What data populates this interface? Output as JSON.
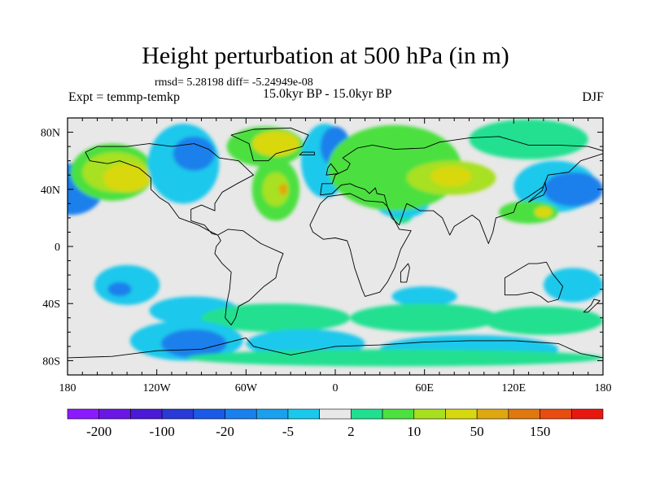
{
  "header": {
    "title": "Height perturbation at 500 hPa (in m)",
    "stats": "rmsd= 5.28198 diff= -5.24949e-08",
    "experiment": "Expt = temmp-temkp",
    "period": "15.0kyr BP - 15.0kyr BP",
    "season": "DJF"
  },
  "chart_data": {
    "type": "heatmap",
    "title": "Height perturbation at 500 hPa (in m)",
    "xlabel": "",
    "ylabel": "",
    "xlim": [
      -180,
      180
    ],
    "ylim": [
      -90,
      90
    ],
    "x_ticks": [
      {
        "value": -180,
        "label": "180"
      },
      {
        "value": -120,
        "label": "120W"
      },
      {
        "value": -60,
        "label": "60W"
      },
      {
        "value": 0,
        "label": "0"
      },
      {
        "value": 60,
        "label": "60E"
      },
      {
        "value": 120,
        "label": "120E"
      },
      {
        "value": 180,
        "label": "180"
      }
    ],
    "y_ticks": [
      {
        "value": 80,
        "label": "80N"
      },
      {
        "value": 40,
        "label": "40N"
      },
      {
        "value": 0,
        "label": "0"
      },
      {
        "value": -40,
        "label": "40S"
      },
      {
        "value": -80,
        "label": "80S"
      }
    ],
    "background_color": "#e8e8e8",
    "colorbar": {
      "colors": [
        "#8c1aff",
        "#6a17e6",
        "#4a1ad6",
        "#2a3ad6",
        "#1a5ae6",
        "#1a80ec",
        "#1aa0ec",
        "#1ac8ec",
        "#e8e8e8",
        "#20e090",
        "#4ce040",
        "#a8e020",
        "#d8d810",
        "#e0a810",
        "#e07810",
        "#e84c10",
        "#e81810"
      ],
      "labels": [
        {
          "index": 1,
          "text": "-200"
        },
        {
          "index": 3,
          "text": "-100"
        },
        {
          "index": 5,
          "text": "-20"
        },
        {
          "index": 7,
          "text": "-5"
        },
        {
          "index": 9,
          "text": "2"
        },
        {
          "index": 11,
          "text": "10"
        },
        {
          "index": 13,
          "text": "50"
        },
        {
          "index": 15,
          "text": "150"
        }
      ]
    },
    "anomalies": [
      {
        "lon": -178,
        "lat": 40,
        "rx": 22,
        "ry": 18,
        "value": -20
      },
      {
        "lon": -150,
        "lat": 52,
        "rx": 28,
        "ry": 20,
        "value": 8
      },
      {
        "lon": -148,
        "lat": 52,
        "rx": 22,
        "ry": 14,
        "value": 15
      },
      {
        "lon": -140,
        "lat": 48,
        "rx": 16,
        "ry": 10,
        "value": 30
      },
      {
        "lon": -102,
        "lat": 58,
        "rx": 24,
        "ry": 28,
        "value": -4
      },
      {
        "lon": -95,
        "lat": 65,
        "rx": 14,
        "ry": 12,
        "value": -20
      },
      {
        "lon": -47,
        "lat": 70,
        "rx": 26,
        "ry": 14,
        "value": 8
      },
      {
        "lon": -40,
        "lat": 72,
        "rx": 16,
        "ry": 9,
        "value": 20
      },
      {
        "lon": -40,
        "lat": 40,
        "rx": 16,
        "ry": 22,
        "value": 6
      },
      {
        "lon": -40,
        "lat": 40,
        "rx": 9,
        "ry": 12,
        "value": 15
      },
      {
        "lon": -35,
        "lat": 40,
        "rx": 3,
        "ry": 4,
        "value": 60
      },
      {
        "lon": -7,
        "lat": 60,
        "rx": 16,
        "ry": 26,
        "value": -4
      },
      {
        "lon": 0,
        "lat": 70,
        "rx": 10,
        "ry": 14,
        "value": -20
      },
      {
        "lon": 45,
        "lat": 38,
        "rx": 12,
        "ry": 22,
        "value": 4
      },
      {
        "lon": 45,
        "lat": 30,
        "rx": 18,
        "ry": 10,
        "value": -3
      },
      {
        "lon": 40,
        "lat": 55,
        "rx": 45,
        "ry": 30,
        "value": 5
      },
      {
        "lon": 78,
        "lat": 48,
        "rx": 30,
        "ry": 12,
        "value": 12
      },
      {
        "lon": 78,
        "lat": 49,
        "rx": 14,
        "ry": 7,
        "value": 30
      },
      {
        "lon": 130,
        "lat": 75,
        "rx": 40,
        "ry": 14,
        "value": 4
      },
      {
        "lon": 148,
        "lat": 42,
        "rx": 28,
        "ry": 18,
        "value": -4
      },
      {
        "lon": 160,
        "lat": 40,
        "rx": 20,
        "ry": 12,
        "value": -20
      },
      {
        "lon": 130,
        "lat": 24,
        "rx": 20,
        "ry": 8,
        "value": 5
      },
      {
        "lon": 140,
        "lat": 24,
        "rx": 6,
        "ry": 4,
        "value": 20
      },
      {
        "lon": 160,
        "lat": -27,
        "rx": 20,
        "ry": 12,
        "value": -4
      },
      {
        "lon": -140,
        "lat": -27,
        "rx": 22,
        "ry": 14,
        "value": -4
      },
      {
        "lon": -145,
        "lat": -30,
        "rx": 8,
        "ry": 5,
        "value": -20
      },
      {
        "lon": -95,
        "lat": -45,
        "rx": 30,
        "ry": 10,
        "value": -3
      },
      {
        "lon": -40,
        "lat": -50,
        "rx": 50,
        "ry": 10,
        "value": 4
      },
      {
        "lon": 60,
        "lat": -35,
        "rx": 22,
        "ry": 7,
        "value": -4
      },
      {
        "lon": 60,
        "lat": -50,
        "rx": 50,
        "ry": 10,
        "value": 4
      },
      {
        "lon": 140,
        "lat": -52,
        "rx": 40,
        "ry": 10,
        "value": 4
      },
      {
        "lon": -100,
        "lat": -66,
        "rx": 38,
        "ry": 14,
        "value": -4
      },
      {
        "lon": -95,
        "lat": -68,
        "rx": 22,
        "ry": 10,
        "value": -20
      },
      {
        "lon": -20,
        "lat": -68,
        "rx": 40,
        "ry": 10,
        "value": -3
      },
      {
        "lon": 90,
        "lat": -72,
        "rx": 60,
        "ry": 10,
        "value": -4
      },
      {
        "lon": 40,
        "lat": -78,
        "rx": 140,
        "ry": 6,
        "value": 4
      }
    ],
    "land_outlines": [
      {
        "name": "north-america",
        "points": [
          [
            -168,
            66
          ],
          [
            -160,
            70
          ],
          [
            -140,
            70
          ],
          [
            -125,
            72
          ],
          [
            -110,
            70
          ],
          [
            -95,
            72
          ],
          [
            -85,
            68
          ],
          [
            -78,
            62
          ],
          [
            -65,
            60
          ],
          [
            -55,
            50
          ],
          [
            -66,
            44
          ],
          [
            -76,
            38
          ],
          [
            -81,
            30
          ],
          [
            -81,
            25
          ],
          [
            -90,
            29
          ],
          [
            -97,
            26
          ],
          [
            -97,
            18
          ],
          [
            -88,
            15
          ],
          [
            -83,
            9
          ],
          [
            -79,
            8
          ],
          [
            -85,
            11
          ],
          [
            -92,
            15
          ],
          [
            -105,
            20
          ],
          [
            -112,
            30
          ],
          [
            -118,
            34
          ],
          [
            -124,
            40
          ],
          [
            -124,
            48
          ],
          [
            -132,
            55
          ],
          [
            -145,
            60
          ],
          [
            -153,
            58
          ],
          [
            -165,
            60
          ],
          [
            -168,
            66
          ]
        ]
      },
      {
        "name": "south-america",
        "points": [
          [
            -79,
            8
          ],
          [
            -72,
            12
          ],
          [
            -62,
            11
          ],
          [
            -50,
            2
          ],
          [
            -35,
            -5
          ],
          [
            -38,
            -13
          ],
          [
            -40,
            -22
          ],
          [
            -48,
            -28
          ],
          [
            -58,
            -38
          ],
          [
            -65,
            -42
          ],
          [
            -67,
            -50
          ],
          [
            -70,
            -55
          ],
          [
            -74,
            -50
          ],
          [
            -73,
            -40
          ],
          [
            -71,
            -30
          ],
          [
            -70,
            -18
          ],
          [
            -76,
            -12
          ],
          [
            -81,
            -5
          ],
          [
            -80,
            0
          ],
          [
            -77,
            4
          ],
          [
            -79,
            8
          ]
        ]
      },
      {
        "name": "greenland",
        "points": [
          [
            -55,
            60
          ],
          [
            -45,
            60
          ],
          [
            -40,
            65
          ],
          [
            -22,
            70
          ],
          [
            -18,
            78
          ],
          [
            -30,
            83
          ],
          [
            -55,
            82
          ],
          [
            -70,
            78
          ],
          [
            -58,
            72
          ],
          [
            -55,
            60
          ]
        ]
      },
      {
        "name": "africa",
        "points": [
          [
            -17,
            15
          ],
          [
            -10,
            30
          ],
          [
            -5,
            35
          ],
          [
            10,
            37
          ],
          [
            20,
            32
          ],
          [
            32,
            31
          ],
          [
            35,
            28
          ],
          [
            43,
            12
          ],
          [
            51,
            11
          ],
          [
            44,
            -2
          ],
          [
            40,
            -15
          ],
          [
            35,
            -25
          ],
          [
            30,
            -32
          ],
          [
            20,
            -35
          ],
          [
            18,
            -30
          ],
          [
            13,
            -15
          ],
          [
            10,
            -2
          ],
          [
            8,
            4
          ],
          [
            0,
            6
          ],
          [
            -8,
            5
          ],
          [
            -15,
            10
          ],
          [
            -17,
            15
          ]
        ]
      },
      {
        "name": "eurasia",
        "points": [
          [
            -10,
            36
          ],
          [
            -9,
            44
          ],
          [
            -2,
            44
          ],
          [
            0,
            50
          ],
          [
            8,
            54
          ],
          [
            10,
            58
          ],
          [
            5,
            62
          ],
          [
            15,
            69
          ],
          [
            25,
            71
          ],
          [
            40,
            68
          ],
          [
            60,
            69
          ],
          [
            70,
            73
          ],
          [
            90,
            76
          ],
          [
            110,
            77
          ],
          [
            130,
            71
          ],
          [
            150,
            71
          ],
          [
            170,
            70
          ],
          [
            180,
            67
          ],
          [
            180,
            65
          ],
          [
            165,
            60
          ],
          [
            157,
            52
          ],
          [
            143,
            50
          ],
          [
            140,
            42
          ],
          [
            130,
            35
          ],
          [
            122,
            30
          ],
          [
            120,
            24
          ],
          [
            108,
            20
          ],
          [
            106,
            10
          ],
          [
            103,
            2
          ],
          [
            100,
            10
          ],
          [
            97,
            18
          ],
          [
            92,
            22
          ],
          [
            80,
            14
          ],
          [
            77,
            8
          ],
          [
            72,
            20
          ],
          [
            66,
            25
          ],
          [
            57,
            25
          ],
          [
            52,
            28
          ],
          [
            48,
            30
          ],
          [
            43,
            15
          ],
          [
            38,
            20
          ],
          [
            35,
            28
          ],
          [
            33,
            36
          ],
          [
            28,
            37
          ],
          [
            27,
            41
          ],
          [
            23,
            37
          ],
          [
            20,
            40
          ],
          [
            14,
            42
          ],
          [
            10,
            44
          ],
          [
            4,
            43
          ],
          [
            -2,
            37
          ],
          [
            -10,
            36
          ]
        ]
      },
      {
        "name": "australia",
        "points": [
          [
            114,
            -22
          ],
          [
            114,
            -34
          ],
          [
            122,
            -34
          ],
          [
            132,
            -32
          ],
          [
            138,
            -35
          ],
          [
            143,
            -39
          ],
          [
            150,
            -37
          ],
          [
            153,
            -28
          ],
          [
            146,
            -19
          ],
          [
            142,
            -11
          ],
          [
            136,
            -12
          ],
          [
            130,
            -12
          ],
          [
            122,
            -17
          ],
          [
            114,
            -22
          ]
        ]
      },
      {
        "name": "antarctica",
        "points": [
          [
            -180,
            -78
          ],
          [
            -150,
            -77
          ],
          [
            -120,
            -73
          ],
          [
            -90,
            -72
          ],
          [
            -60,
            -64
          ],
          [
            -55,
            -70
          ],
          [
            -30,
            -76
          ],
          [
            0,
            -70
          ],
          [
            30,
            -69
          ],
          [
            60,
            -67
          ],
          [
            90,
            -66
          ],
          [
            120,
            -66
          ],
          [
            150,
            -68
          ],
          [
            165,
            -75
          ],
          [
            180,
            -78
          ]
        ]
      },
      {
        "name": "great-britain",
        "points": [
          [
            -6,
            50
          ],
          [
            2,
            51
          ],
          [
            0,
            54
          ],
          [
            -3,
            58
          ],
          [
            -5,
            55
          ],
          [
            -6,
            50
          ]
        ]
      },
      {
        "name": "japan",
        "points": [
          [
            130,
            31
          ],
          [
            135,
            34
          ],
          [
            140,
            36
          ],
          [
            142,
            40
          ],
          [
            141,
            45
          ],
          [
            139,
            39
          ],
          [
            133,
            34
          ],
          [
            130,
            31
          ]
        ]
      },
      {
        "name": "madagascar",
        "points": [
          [
            44,
            -25
          ],
          [
            48,
            -25
          ],
          [
            50,
            -15
          ],
          [
            49,
            -12
          ],
          [
            44,
            -18
          ],
          [
            44,
            -25
          ]
        ]
      },
      {
        "name": "new-zealand",
        "points": [
          [
            167,
            -46
          ],
          [
            172,
            -41
          ],
          [
            174,
            -37
          ],
          [
            178,
            -38
          ],
          [
            174,
            -42
          ],
          [
            170,
            -46
          ],
          [
            167,
            -46
          ]
        ]
      },
      {
        "name": "iceland",
        "points": [
          [
            -24,
            64
          ],
          [
            -14,
            64
          ],
          [
            -14,
            66
          ],
          [
            -22,
            66
          ],
          [
            -24,
            64
          ]
        ]
      }
    ]
  }
}
